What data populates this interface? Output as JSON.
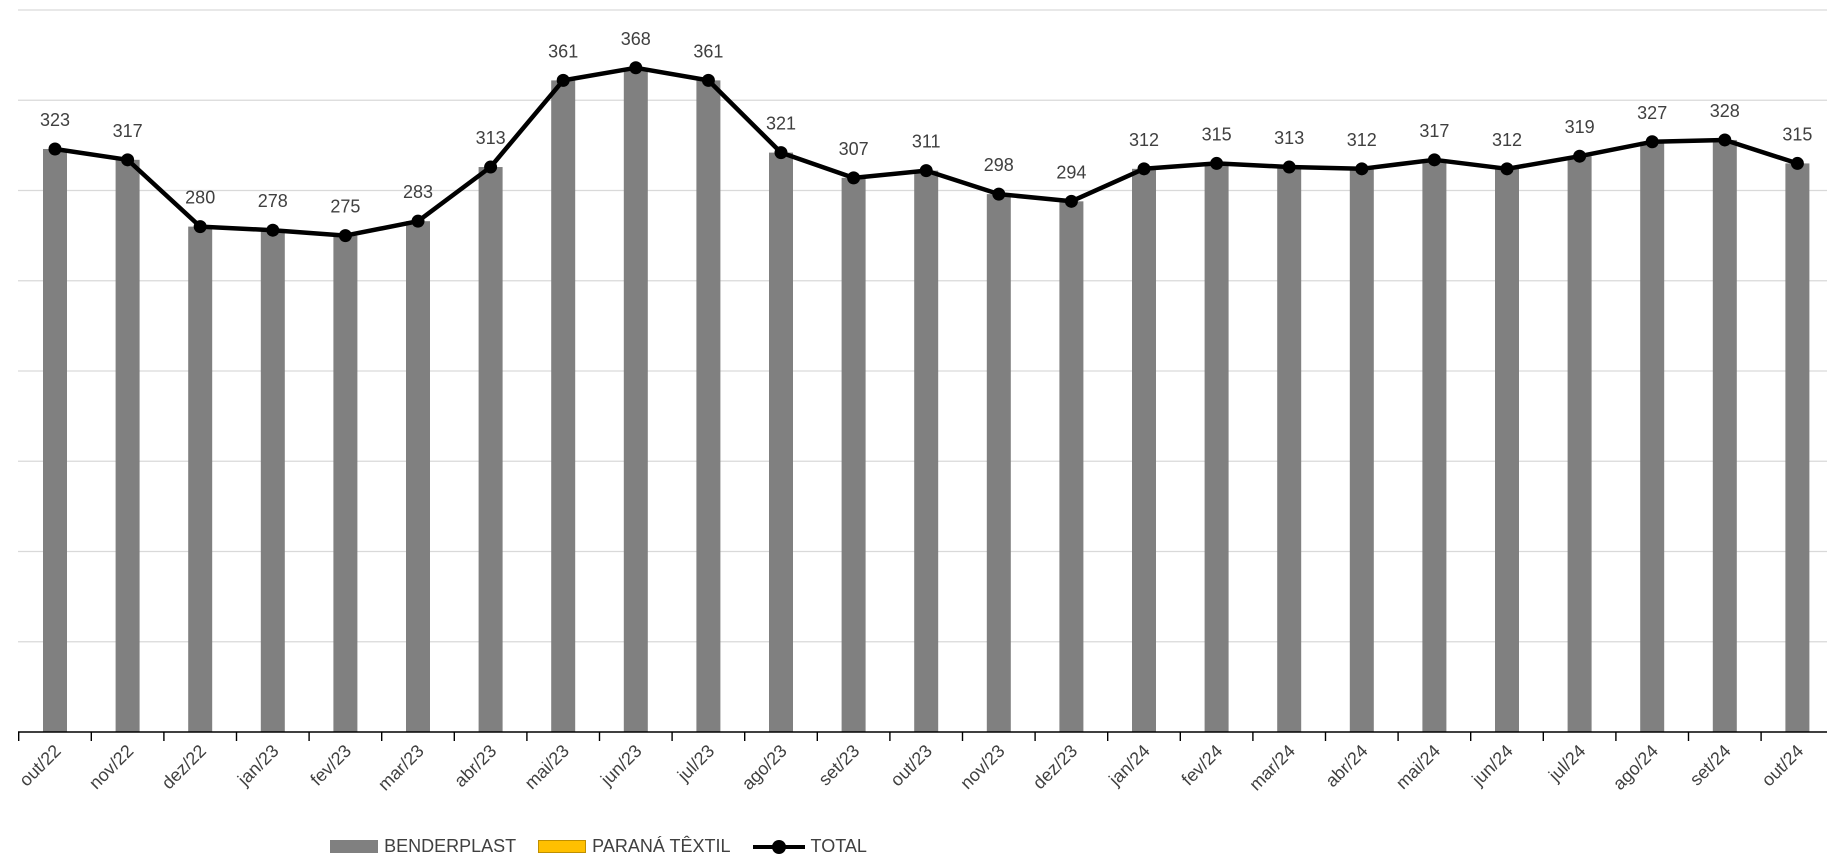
{
  "chart_data": {
    "type": "bar",
    "categories": [
      "out/22",
      "nov/22",
      "dez/22",
      "jan/23",
      "fev/23",
      "mar/23",
      "abr/23",
      "mai/23",
      "jun/23",
      "jul/23",
      "ago/23",
      "set/23",
      "out/23",
      "nov/23",
      "dez/23",
      "jan/24",
      "fev/24",
      "mar/24",
      "abr/24",
      "mai/24",
      "jun/24",
      "jul/24",
      "ago/24",
      "set/24",
      "out/24"
    ],
    "series": [
      {
        "name": "BENDERPLAST",
        "type": "bar",
        "color": "#808080",
        "values": [
          323,
          317,
          280,
          278,
          275,
          283,
          313,
          361,
          368,
          361,
          321,
          307,
          311,
          298,
          294,
          312,
          315,
          313,
          312,
          317,
          312,
          319,
          327,
          328,
          315
        ]
      },
      {
        "name": "PARANÁ TÊXTIL",
        "type": "bar",
        "color": "#FFC000",
        "values": [
          0,
          0,
          0,
          0,
          0,
          0,
          0,
          0,
          0,
          0,
          0,
          0,
          0,
          0,
          0,
          0,
          0,
          0,
          0,
          0,
          0,
          0,
          0,
          0,
          0
        ]
      },
      {
        "name": "TOTAL",
        "type": "line",
        "color": "#000000",
        "values": [
          323,
          317,
          280,
          278,
          275,
          283,
          313,
          361,
          368,
          361,
          321,
          307,
          311,
          298,
          294,
          312,
          315,
          313,
          312,
          317,
          312,
          319,
          327,
          328,
          315
        ]
      }
    ],
    "ylim": [
      0,
      400
    ],
    "grid": true,
    "legend_position": "bottom"
  }
}
